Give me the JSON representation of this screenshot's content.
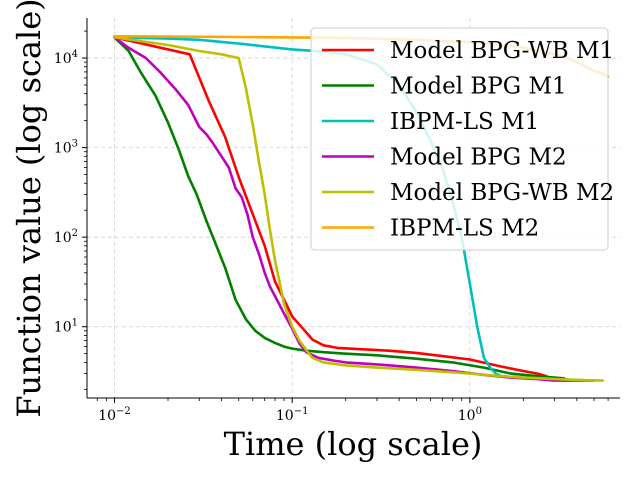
{
  "chart_data": {
    "type": "line",
    "title": "",
    "xlabel": "Time (log scale)",
    "ylabel": "Function value (log scale)",
    "xscale": "log",
    "yscale": "log",
    "xlim": [
      0.007,
      7
    ],
    "ylim": [
      1.6,
      28000
    ],
    "grid": true,
    "legend_position": "top-right",
    "x_ticks": [
      {
        "value": 0.01,
        "base": "10",
        "exp": "−2"
      },
      {
        "value": 0.1,
        "base": "10",
        "exp": "−1"
      },
      {
        "value": 1,
        "base": "10",
        "exp": "0"
      }
    ],
    "y_ticks": [
      {
        "value": 10,
        "base": "10",
        "exp": "1"
      },
      {
        "value": 100,
        "base": "10",
        "exp": "2"
      },
      {
        "value": 1000,
        "base": "10",
        "exp": "3"
      },
      {
        "value": 10000,
        "base": "10",
        "exp": "4"
      }
    ],
    "series": [
      {
        "name": "Model BPG-WB M1",
        "color": "#ff0000",
        "x": [
          0.01,
          0.0265,
          0.034,
          0.042,
          0.05,
          0.06,
          0.07,
          0.08,
          0.09,
          0.1,
          0.115,
          0.13,
          0.15,
          0.18,
          0.25,
          0.35,
          0.5,
          0.7,
          1.0,
          1.5,
          2.0,
          2.4,
          2.7
        ],
        "y": [
          17000,
          11000,
          3300,
          1300,
          470,
          180,
          80,
          32,
          20,
          13,
          9.5,
          7.2,
          6.2,
          5.8,
          5.6,
          5.4,
          5.1,
          4.7,
          4.3,
          3.6,
          3.2,
          3.0,
          2.8
        ]
      },
      {
        "name": "Model BPG M1",
        "color": "#008000",
        "x": [
          0.01,
          0.012,
          0.014,
          0.017,
          0.02,
          0.023,
          0.026,
          0.029,
          0.033,
          0.037,
          0.042,
          0.048,
          0.055,
          0.062,
          0.07,
          0.08,
          0.09,
          0.1,
          0.12,
          0.15,
          0.2,
          0.3,
          0.5,
          0.8,
          1.2,
          1.7,
          2.4,
          3.0,
          3.4
        ],
        "y": [
          17000,
          12000,
          7000,
          3800,
          1900,
          950,
          480,
          300,
          150,
          85,
          45,
          20,
          12,
          9,
          7.5,
          6.6,
          6.0,
          5.7,
          5.4,
          5.2,
          5.0,
          4.8,
          4.4,
          4.0,
          3.5,
          3.0,
          2.8,
          2.7,
          2.65
        ]
      },
      {
        "name": "IBPM-LS M1",
        "color": "#00bfbf",
        "x": [
          0.01,
          0.02,
          0.03,
          0.05,
          0.07,
          0.1,
          0.15,
          0.2,
          0.3,
          0.4,
          0.5,
          0.6,
          0.7,
          0.8,
          0.9,
          1.0,
          1.1,
          1.2,
          1.3,
          1.4,
          1.5,
          2.0,
          3.0,
          4.0
        ],
        "y": [
          17000,
          16500,
          16000,
          14500,
          13500,
          12500,
          11800,
          11000,
          8500,
          5000,
          2500,
          1200,
          600,
          250,
          100,
          30,
          10,
          4.5,
          3.5,
          3.0,
          2.8,
          2.7,
          2.6,
          2.55
        ]
      },
      {
        "name": "Model BPG M2",
        "color": "#bf00bf",
        "x": [
          0.01,
          0.012,
          0.015,
          0.018,
          0.022,
          0.026,
          0.03,
          0.033,
          0.036,
          0.04,
          0.044,
          0.048,
          0.052,
          0.056,
          0.06,
          0.065,
          0.07,
          0.075,
          0.08,
          0.09,
          0.1,
          0.11,
          0.12,
          0.14,
          0.17,
          0.2,
          0.3,
          0.5,
          0.8,
          1.2,
          1.7,
          2.4,
          3.0,
          4.0,
          5.0
        ],
        "y": [
          17000,
          13000,
          10000,
          7000,
          4500,
          3000,
          1700,
          1400,
          1100,
          800,
          600,
          350,
          280,
          180,
          100,
          65,
          40,
          28,
          22,
          14,
          9.5,
          6.5,
          5.2,
          4.5,
          4.2,
          4.0,
          3.8,
          3.5,
          3.2,
          2.9,
          2.7,
          2.6,
          2.5,
          2.5,
          2.5
        ]
      },
      {
        "name": "Model BPG-WB M2",
        "color": "#bfbf00",
        "x": [
          0.01,
          0.02,
          0.03,
          0.04,
          0.05,
          0.055,
          0.06,
          0.065,
          0.07,
          0.075,
          0.08,
          0.09,
          0.1,
          0.11,
          0.12,
          0.13,
          0.15,
          0.2,
          0.3,
          0.5,
          0.8,
          1.0,
          1.5,
          2.0,
          3.0,
          4.0,
          5.6
        ],
        "y": [
          17000,
          14000,
          12000,
          11000,
          10000,
          4500,
          1800,
          700,
          300,
          120,
          55,
          18,
          10,
          7,
          5.5,
          4.5,
          4.0,
          3.7,
          3.5,
          3.3,
          3.1,
          3.0,
          2.8,
          2.7,
          2.6,
          2.55,
          2.5
        ]
      },
      {
        "name": "IBPM-LS M2",
        "color": "#ffa500",
        "x": [
          0.01,
          0.02,
          0.05,
          0.1,
          0.2,
          0.5,
          1.0,
          1.5,
          2.0,
          2.5,
          3.0,
          3.5,
          4.0,
          4.5,
          5.0,
          5.6,
          6.0
        ],
        "y": [
          17500,
          17400,
          17200,
          17000,
          16800,
          16000,
          15000,
          14000,
          13000,
          12000,
          11000,
          10000,
          9000,
          8000,
          7200,
          6700,
          6200
        ]
      }
    ]
  }
}
